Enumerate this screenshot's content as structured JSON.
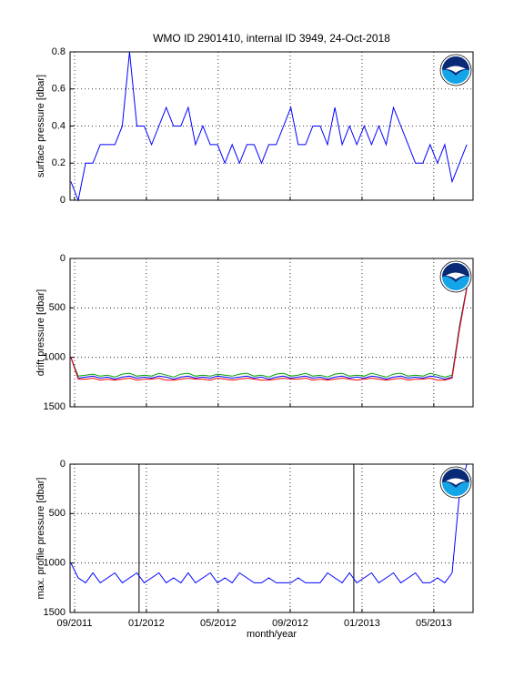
{
  "chart_data": [
    {
      "type": "line",
      "title": "WMO ID 2901410, internal ID 3949, 24-Oct-2018",
      "ylabel": "surface pressure [dbar]",
      "x": [
        2011.65,
        2011.684,
        2011.718,
        2011.752,
        2011.786,
        2011.82,
        2011.854,
        2011.888,
        2011.922,
        2011.956,
        2011.99,
        2012.024,
        2012.058,
        2012.092,
        2012.126,
        2012.16,
        2012.194,
        2012.228,
        2012.262,
        2012.296,
        2012.33,
        2012.364,
        2012.398,
        2012.432,
        2012.466,
        2012.5,
        2012.534,
        2012.568,
        2012.602,
        2012.636,
        2012.67,
        2012.704,
        2012.738,
        2012.772,
        2012.806,
        2012.84,
        2012.874,
        2012.908,
        2012.942,
        2012.976,
        2013.01,
        2013.044,
        2013.078,
        2013.112,
        2013.146,
        2013.18,
        2013.214,
        2013.248,
        2013.282,
        2013.316,
        2013.35,
        2013.384,
        2013.418,
        2013.452,
        2013.486
      ],
      "series": [
        {
          "color": "#0000ff",
          "values": [
            0.1,
            0,
            0.2,
            0.2,
            0.3,
            0.3,
            0.3,
            0.4,
            0.8,
            0.4,
            0.4,
            0.3,
            0.4,
            0.5,
            0.4,
            0.4,
            0.5,
            0.3,
            0.4,
            0.3,
            0.3,
            0.2,
            0.3,
            0.2,
            0.3,
            0.3,
            0.2,
            0.3,
            0.3,
            0.4,
            0.5,
            0.3,
            0.3,
            0.4,
            0.4,
            0.3,
            0.5,
            0.3,
            0.4,
            0.3,
            0.4,
            0.3,
            0.4,
            0.3,
            0.5,
            0.4,
            0.3,
            0.2,
            0.2,
            0.3,
            0.2,
            0.3,
            0.1,
            0.2,
            0.3
          ]
        }
      ],
      "xlim": [
        2011.646,
        2013.515
      ],
      "xticks": [
        {
          "value": 2011.667,
          "label": "09/2011"
        },
        {
          "value": 2012.0,
          "label": "01/2012"
        },
        {
          "value": 2012.333,
          "label": "05/2012"
        },
        {
          "value": 2012.667,
          "label": "09/2012"
        },
        {
          "value": 2013.0,
          "label": "01/2013"
        },
        {
          "value": 2013.333,
          "label": "05/2013"
        }
      ],
      "ylim": [
        0,
        0.8
      ],
      "yticks": [
        0,
        0.2,
        0.4,
        0.6,
        0.8
      ],
      "grid": true
    },
    {
      "type": "line",
      "ylabel": "drift pressure [dbar]",
      "x": [
        2011.65,
        2011.684,
        2011.718,
        2011.752,
        2011.786,
        2011.82,
        2011.854,
        2011.888,
        2011.922,
        2011.956,
        2011.99,
        2012.024,
        2012.058,
        2012.092,
        2012.126,
        2012.16,
        2012.194,
        2012.228,
        2012.262,
        2012.296,
        2012.33,
        2012.364,
        2012.398,
        2012.432,
        2012.466,
        2012.5,
        2012.534,
        2012.568,
        2012.602,
        2012.636,
        2012.67,
        2012.704,
        2012.738,
        2012.772,
        2012.806,
        2012.84,
        2012.874,
        2012.908,
        2012.942,
        2012.976,
        2013.01,
        2013.044,
        2013.078,
        2013.112,
        2013.146,
        2013.18,
        2013.214,
        2013.248,
        2013.282,
        2013.316,
        2013.35,
        2013.384,
        2013.418,
        2013.452,
        2013.486
      ],
      "series": [
        {
          "color": "#00a000",
          "values": [
            1000,
            1190,
            1180,
            1170,
            1190,
            1180,
            1200,
            1170,
            1160,
            1190,
            1180,
            1190,
            1160,
            1180,
            1200,
            1170,
            1160,
            1190,
            1180,
            1190,
            1170,
            1180,
            1190,
            1170,
            1160,
            1190,
            1180,
            1200,
            1170,
            1160,
            1190,
            1180,
            1160,
            1190,
            1180,
            1200,
            1170,
            1160,
            1190,
            1180,
            1190,
            1160,
            1180,
            1200,
            1170,
            1160,
            1190,
            1180,
            1190,
            1160,
            1180,
            1200,
            1180,
            680,
            290
          ]
        },
        {
          "color": "#0000ff",
          "values": [
            1000,
            1210,
            1200,
            1190,
            1210,
            1200,
            1220,
            1200,
            1190,
            1210,
            1200,
            1210,
            1190,
            1200,
            1220,
            1200,
            1190,
            1210,
            1200,
            1210,
            1190,
            1200,
            1210,
            1200,
            1190,
            1210,
            1200,
            1220,
            1200,
            1190,
            1210,
            1200,
            1190,
            1210,
            1200,
            1220,
            1200,
            1190,
            1210,
            1200,
            1210,
            1190,
            1200,
            1220,
            1200,
            1190,
            1210,
            1200,
            1210,
            1190,
            1200,
            1220,
            1200,
            700,
            300
          ]
        },
        {
          "color": "#ff0000",
          "values": [
            1000,
            1220,
            1220,
            1210,
            1230,
            1220,
            1230,
            1220,
            1210,
            1230,
            1220,
            1220,
            1210,
            1230,
            1230,
            1220,
            1210,
            1220,
            1220,
            1230,
            1210,
            1220,
            1230,
            1220,
            1210,
            1220,
            1230,
            1230,
            1220,
            1210,
            1220,
            1220,
            1210,
            1230,
            1220,
            1230,
            1220,
            1210,
            1220,
            1230,
            1220,
            1210,
            1220,
            1230,
            1220,
            1210,
            1230,
            1220,
            1220,
            1210,
            1230,
            1230,
            1210,
            720,
            310
          ]
        }
      ],
      "xlim": [
        2011.646,
        2013.515
      ],
      "xticks": [
        {
          "value": 2011.667,
          "label": "09/2011"
        },
        {
          "value": 2012.0,
          "label": "01/2012"
        },
        {
          "value": 2012.333,
          "label": "05/2012"
        },
        {
          "value": 2012.667,
          "label": "09/2012"
        },
        {
          "value": 2013.0,
          "label": "01/2013"
        },
        {
          "value": 2013.333,
          "label": "05/2013"
        }
      ],
      "ylim": [
        1500,
        0
      ],
      "yticks": [
        0,
        500,
        1000,
        1500
      ],
      "grid": true
    },
    {
      "type": "line",
      "ylabel": "max. profile pressure [dbar]",
      "xlabel": "month/year",
      "x": [
        2011.65,
        2011.684,
        2011.718,
        2011.752,
        2011.786,
        2011.82,
        2011.854,
        2011.888,
        2011.922,
        2011.956,
        2011.99,
        2012.024,
        2012.058,
        2012.092,
        2012.126,
        2012.16,
        2012.194,
        2012.228,
        2012.262,
        2012.296,
        2012.33,
        2012.364,
        2012.398,
        2012.432,
        2012.466,
        2012.5,
        2012.534,
        2012.568,
        2012.602,
        2012.636,
        2012.67,
        2012.704,
        2012.738,
        2012.772,
        2012.806,
        2012.84,
        2012.874,
        2012.908,
        2012.942,
        2012.976,
        2013.01,
        2013.044,
        2013.078,
        2013.112,
        2013.146,
        2013.18,
        2013.214,
        2013.248,
        2013.282,
        2013.316,
        2013.35,
        2013.384,
        2013.418,
        2013.452,
        2013.486
      ],
      "series": [
        {
          "color": "#0000ff",
          "values": [
            1000,
            1150,
            1200,
            1100,
            1200,
            1150,
            1100,
            1200,
            1150,
            1100,
            1200,
            1150,
            1100,
            1200,
            1150,
            1200,
            1100,
            1200,
            1150,
            1100,
            1200,
            1150,
            1200,
            1100,
            1150,
            1200,
            1200,
            1150,
            1200,
            1200,
            1200,
            1150,
            1200,
            1200,
            1200,
            1100,
            1150,
            1200,
            1100,
            1200,
            1150,
            1100,
            1200,
            1150,
            1100,
            1200,
            1150,
            1100,
            1200,
            1200,
            1150,
            1200,
            1100,
            300,
            0
          ]
        }
      ],
      "vlines": [
        2011.966,
        2012.962
      ],
      "xlim": [
        2011.646,
        2013.515
      ],
      "xticks": [
        {
          "value": 2011.667,
          "label": "09/2011"
        },
        {
          "value": 2012.0,
          "label": "01/2012"
        },
        {
          "value": 2012.333,
          "label": "05/2012"
        },
        {
          "value": 2012.667,
          "label": "09/2012"
        },
        {
          "value": 2013.0,
          "label": "01/2013"
        },
        {
          "value": 2013.333,
          "label": "05/2013"
        }
      ],
      "ylim": [
        1500,
        0
      ],
      "yticks": [
        0,
        500,
        1000,
        1500
      ],
      "grid": true
    }
  ]
}
